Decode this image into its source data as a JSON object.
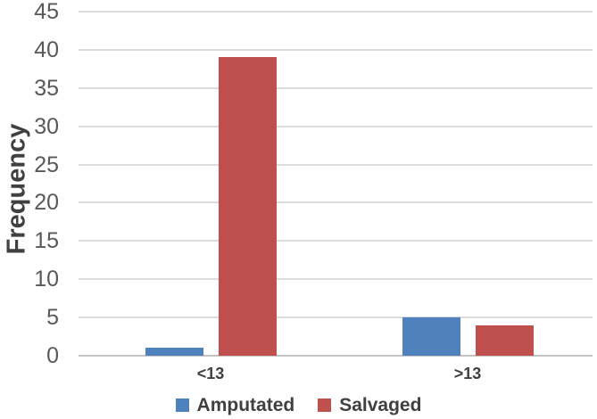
{
  "chart_data": {
    "type": "bar",
    "title": "",
    "xlabel": "",
    "ylabel": "Frequency",
    "categories": [
      "<13",
      ">13"
    ],
    "series": [
      {
        "name": "Amputated",
        "color": "#4F81BD",
        "values": [
          1,
          5
        ]
      },
      {
        "name": "Salvaged",
        "color": "#C0504D",
        "values": [
          39,
          4
        ]
      }
    ],
    "ylim": [
      0,
      45
    ],
    "ytick_step": 5,
    "yticks": [
      0,
      5,
      10,
      15,
      20,
      25,
      30,
      35,
      40,
      45
    ],
    "grid": "horizontal",
    "legend_position": "bottom",
    "colors": {
      "amputated": "#4F81BD",
      "salvaged": "#C0504D",
      "gridline": "#DCDCDC",
      "axis_line": "#C3C3C3",
      "tick_text": "#595959",
      "label_text": "#404040"
    }
  }
}
